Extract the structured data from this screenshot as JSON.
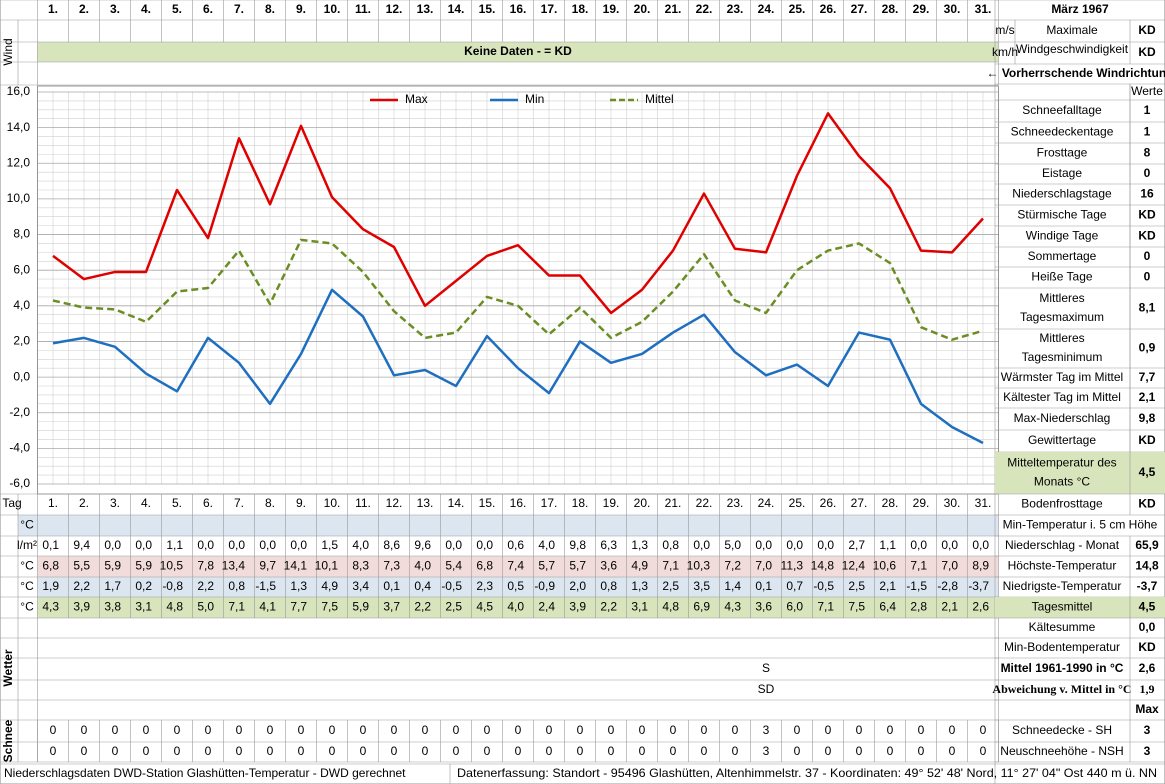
{
  "header": {
    "month": "März 1967"
  },
  "wind": {
    "label": "Wind",
    "units": [
      "m/s",
      "km/h"
    ],
    "banner": "Keine Daten -  = KD",
    "max_label": [
      "Maximale",
      "Windgeschwindigkeit"
    ],
    "values": [
      "KD",
      "KD"
    ],
    "direction_label": "← Vorherrschende Windrichtung"
  },
  "chart_data": {
    "type": "line",
    "categories": [
      "1.",
      "2.",
      "3.",
      "4.",
      "5.",
      "6.",
      "7.",
      "8.",
      "9.",
      "10.",
      "11.",
      "12.",
      "13.",
      "14.",
      "15.",
      "16.",
      "17.",
      "18.",
      "19.",
      "20.",
      "21.",
      "22.",
      "23.",
      "24.",
      "25.",
      "26.",
      "27.",
      "28.",
      "29.",
      "30.",
      "31."
    ],
    "series": [
      {
        "name": "Max",
        "color": "#e00000",
        "dashed": false,
        "values": [
          6.8,
          5.5,
          5.9,
          5.9,
          10.5,
          7.8,
          13.4,
          9.7,
          14.1,
          10.1,
          8.3,
          7.3,
          4.0,
          5.4,
          6.8,
          7.4,
          5.7,
          5.7,
          3.6,
          4.9,
          7.1,
          10.3,
          7.2,
          7.0,
          11.3,
          14.8,
          12.4,
          10.6,
          7.1,
          7.0,
          8.9
        ]
      },
      {
        "name": "Min",
        "color": "#1f6fc0",
        "dashed": false,
        "values": [
          1.9,
          2.2,
          1.7,
          0.2,
          -0.8,
          2.2,
          0.8,
          -1.5,
          1.3,
          4.9,
          3.4,
          0.1,
          0.4,
          -0.5,
          2.3,
          0.5,
          -0.9,
          2.0,
          0.8,
          1.3,
          2.5,
          3.5,
          1.4,
          0.1,
          0.7,
          -0.5,
          2.5,
          2.1,
          -1.5,
          -2.8,
          -3.7
        ]
      },
      {
        "name": "Mittel",
        "color": "#6b8e23",
        "dashed": true,
        "values": [
          4.3,
          3.9,
          3.8,
          3.1,
          4.8,
          5.0,
          7.1,
          4.1,
          7.7,
          7.5,
          5.9,
          3.7,
          2.2,
          2.5,
          4.5,
          4.0,
          2.4,
          3.9,
          2.2,
          3.1,
          4.8,
          6.9,
          4.3,
          3.6,
          6.0,
          7.1,
          7.5,
          6.4,
          2.8,
          2.1,
          2.6
        ]
      }
    ],
    "ylim": [
      -6,
      16
    ],
    "yticks": [
      {
        "value": -6,
        "label": "-6,0"
      },
      {
        "value": -4,
        "label": "-4,0"
      },
      {
        "value": -2,
        "label": "-2,0"
      },
      {
        "value": 0,
        "label": "0,0"
      },
      {
        "value": 2,
        "label": "2,0"
      },
      {
        "value": 4,
        "label": "4,0"
      },
      {
        "value": 6,
        "label": "6,0"
      },
      {
        "value": 8,
        "label": "8,0"
      },
      {
        "value": 10,
        "label": "10,0"
      },
      {
        "value": 12,
        "label": "12,0"
      },
      {
        "value": 14,
        "label": "14,0"
      },
      {
        "value": 16,
        "label": "16,0"
      }
    ],
    "grid": true,
    "legend": "top"
  },
  "stats": {
    "header": "Werte",
    "rows": [
      {
        "label": "Schneefalltage",
        "value": "1"
      },
      {
        "label": "Schneedeckentage",
        "value": "1"
      },
      {
        "label": "Frosttage",
        "value": "8"
      },
      {
        "label": "Eistage",
        "value": "0"
      },
      {
        "label": "Niederschlagstage",
        "value": "16"
      },
      {
        "label": "Stürmische Tage",
        "value": "KD"
      },
      {
        "label": "Windige Tage",
        "value": "KD"
      },
      {
        "label": "Sommertage",
        "value": "0"
      },
      {
        "label": "Heiße Tage",
        "value": "0"
      },
      {
        "label": [
          "Mittleres",
          "Tagesmaximum"
        ],
        "value": "8,1"
      },
      {
        "label": [
          "Mittleres",
          "Tagesminimum"
        ],
        "value": "0,9"
      },
      {
        "label": "Wärmster Tag im Mittel",
        "value": "7,7"
      },
      {
        "label": "Kältester Tag im Mittel",
        "value": "2,1"
      },
      {
        "label": "Max-Niederschlag",
        "value": "9,8"
      },
      {
        "label": "Gewittertage",
        "value": "KD"
      },
      {
        "label": [
          "Mitteltemperatur des",
          "Monats °C"
        ],
        "value": "4,5",
        "highlight": "green"
      }
    ]
  },
  "summary": {
    "rows": [
      {
        "label": "Bodenfrosttage",
        "value": "KD"
      },
      {
        "label": "Min-Temperatur i. 5 cm Höhe"
      },
      {
        "label": "Niederschlag - Monat",
        "value": "65,9"
      },
      {
        "label": "Höchste-Temperatur",
        "value": "14,8"
      },
      {
        "label": "Niedrigste-Temperatur",
        "value": "-3,7"
      },
      {
        "label": "Tagesmittel",
        "value": "4,5",
        "highlight": "green"
      },
      {
        "label": "Kältesumme",
        "value": "0,0"
      },
      {
        "label": "Min-Bodentemperatur",
        "value": "KD"
      },
      {
        "label": "Mittel 1961-1990 in °C",
        "value": "2,6",
        "style": "bold"
      },
      {
        "label": "Abweichung v. Mittel in °C",
        "value": "1,9",
        "style": "red"
      },
      {
        "value": "Max"
      },
      {
        "label": "Schneedecke -  SH",
        "value": "3"
      },
      {
        "label": "Neuschneehöhe - NSH",
        "value": "3"
      }
    ]
  },
  "table": {
    "tag_label": "Tag",
    "rows": [
      {
        "unit": "°C",
        "background": "#dce6f1"
      },
      {
        "unit": "l/m²",
        "background": "#ffffff",
        "values": [
          "0,1",
          "9,4",
          "0,0",
          "0,0",
          "1,1",
          "0,0",
          "0,0",
          "0,0",
          "0,0",
          "1,5",
          "4,0",
          "8,6",
          "9,6",
          "0,0",
          "0,0",
          "0,6",
          "4,0",
          "9,8",
          "6,3",
          "1,3",
          "0,8",
          "0,0",
          "5,0",
          "0,0",
          "0,0",
          "0,0",
          "2,7",
          "1,1",
          "0,0",
          "0,0",
          "0,0"
        ]
      },
      {
        "unit": "°C",
        "background": "#f2dcdb",
        "values": [
          "6,8",
          "5,5",
          "5,9",
          "5,9",
          "10,5",
          "7,8",
          "13,4",
          "9,7",
          "14,1",
          "10,1",
          "8,3",
          "7,3",
          "4,0",
          "5,4",
          "6,8",
          "7,4",
          "5,7",
          "5,7",
          "3,6",
          "4,9",
          "7,1",
          "10,3",
          "7,2",
          "7,0",
          "11,3",
          "14,8",
          "12,4",
          "10,6",
          "7,1",
          "7,0",
          "8,9"
        ]
      },
      {
        "unit": "°C",
        "background": "#dce6f1",
        "values": [
          "1,9",
          "2,2",
          "1,7",
          "0,2",
          "-0,8",
          "2,2",
          "0,8",
          "-1,5",
          "1,3",
          "4,9",
          "3,4",
          "0,1",
          "0,4",
          "-0,5",
          "2,3",
          "0,5",
          "-0,9",
          "2,0",
          "0,8",
          "1,3",
          "2,5",
          "3,5",
          "1,4",
          "0,1",
          "0,7",
          "-0,5",
          "2,5",
          "2,1",
          "-1,5",
          "-2,8",
          "-3,7"
        ]
      },
      {
        "unit": "°C",
        "background": "#d8e4bc",
        "values": [
          "4,3",
          "3,9",
          "3,8",
          "3,1",
          "4,8",
          "5,0",
          "7,1",
          "4,1",
          "7,7",
          "7,5",
          "5,9",
          "3,7",
          "2,2",
          "2,5",
          "4,5",
          "4,0",
          "2,4",
          "3,9",
          "2,2",
          "3,1",
          "4,8",
          "6,9",
          "4,3",
          "3,6",
          "6,0",
          "7,1",
          "7,5",
          "6,4",
          "2,8",
          "2,1",
          "2,6"
        ]
      }
    ]
  },
  "weather": {
    "label": "Wetter",
    "rows": [
      [],
      [],
      [
        {
          "day": "24.",
          "text": "S"
        }
      ],
      [
        {
          "day": "24.",
          "text": "SD"
        }
      ],
      []
    ]
  },
  "snow": {
    "label": "Schnee",
    "rows": [
      [
        0,
        0,
        0,
        0,
        0,
        0,
        0,
        0,
        0,
        0,
        0,
        0,
        0,
        0,
        0,
        0,
        0,
        0,
        0,
        0,
        0,
        0,
        0,
        3,
        0,
        0,
        0,
        0,
        0,
        0,
        0
      ],
      [
        0,
        0,
        0,
        0,
        0,
        0,
        0,
        0,
        0,
        0,
        0,
        0,
        0,
        0,
        0,
        0,
        0,
        0,
        0,
        0,
        0,
        0,
        0,
        3,
        0,
        0,
        0,
        0,
        0,
        0,
        0
      ]
    ]
  },
  "footer": {
    "left": "Niederschlagsdaten DWD-Station Glashütten-Temperatur -  DWD gerechnet",
    "right": "Datenerfassung: Standort -  95496  Glashütten, Altenhimmelstr. 37 - Koordinaten:  49° 52' 48' Nord,   11° 27' 04\" Ost   440 m ü. NN"
  }
}
